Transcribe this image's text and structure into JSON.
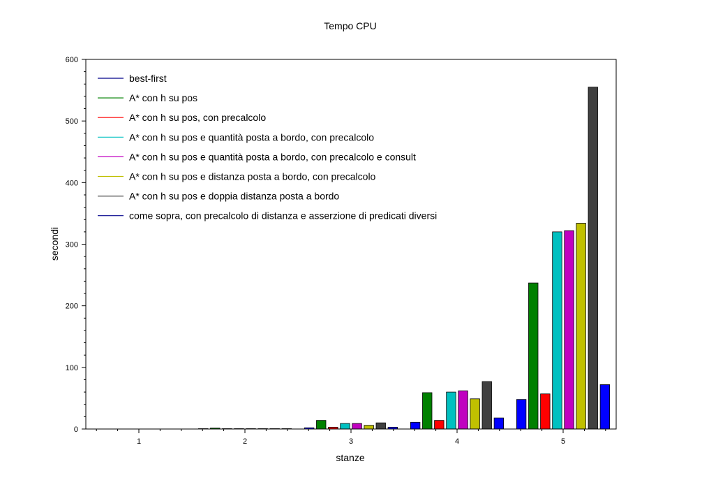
{
  "chart_data": {
    "type": "bar",
    "title": "Tempo CPU",
    "xlabel": "stanze",
    "ylabel": "secondi",
    "ylim": [
      0,
      600
    ],
    "yticks": [
      0,
      100,
      200,
      300,
      400,
      500,
      600
    ],
    "categories": [
      "1",
      "2",
      "3",
      "4",
      "5"
    ],
    "grid": false,
    "legend_position": "top-left",
    "series": [
      {
        "name": "best-first",
        "color": "#0000ff",
        "line_color": "#00008b",
        "values": [
          0,
          0.3,
          2,
          11,
          48
        ]
      },
      {
        "name": "A* con h su pos",
        "color": "#008000",
        "line_color": "#008000",
        "values": [
          0,
          1.5,
          14,
          59,
          237
        ]
      },
      {
        "name": "A* con h su pos, con precalcolo",
        "color": "#ff0000",
        "line_color": "#ff0000",
        "values": [
          0,
          0.5,
          3,
          14,
          57
        ]
      },
      {
        "name": "A* con h su pos e quantità posta a bordo, con precalcolo",
        "color": "#00c0c0",
        "line_color": "#00c0c0",
        "values": [
          0,
          0.5,
          9,
          60,
          320
        ]
      },
      {
        "name": "A* con h su pos e quantità posta a bordo, con precalcolo e consult",
        "color": "#c000c0",
        "line_color": "#c000c0",
        "values": [
          0,
          0.5,
          9,
          62,
          322
        ]
      },
      {
        "name": "A* con h su pos e distanza posta a bordo, con precalcolo",
        "color": "#c0c000",
        "line_color": "#c0c000",
        "values": [
          0,
          0.5,
          6,
          49,
          334
        ]
      },
      {
        "name": "A* con h su pos e doppia distanza posta a bordo",
        "color": "#404040",
        "line_color": "#404040",
        "values": [
          0,
          0.5,
          10,
          77,
          555
        ]
      },
      {
        "name": "come sopra, con precalcolo di distanza e asserzione di predicati diversi",
        "color": "#0000ff",
        "line_color": "#00008b",
        "values": [
          0,
          0.3,
          3,
          18,
          72
        ]
      }
    ]
  }
}
